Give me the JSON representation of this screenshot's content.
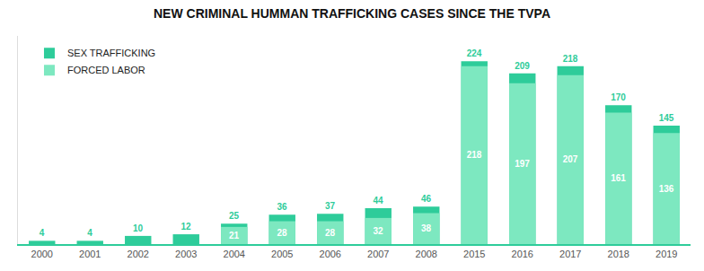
{
  "chart_data": {
    "type": "bar",
    "title": "NEW CRIMINAL HUMMAN TRAFFICKING CASES SINCE THE TVPA",
    "categories": [
      "2000",
      "2001",
      "2002",
      "2003",
      "2004",
      "2005",
      "2006",
      "2007",
      "2008",
      "2015",
      "2016",
      "2017",
      "2018",
      "2019"
    ],
    "series": [
      {
        "name": "SEX TRAFFICKING",
        "color": "#2ecc9a",
        "values": [
          4,
          4,
          10,
          12,
          25,
          36,
          37,
          44,
          46,
          224,
          209,
          218,
          170,
          145
        ]
      },
      {
        "name": "FORCED LABOR",
        "color": "#7de8c0",
        "values": [
          0,
          0,
          0,
          0,
          21,
          28,
          28,
          32,
          38,
          218,
          197,
          207,
          161,
          136
        ],
        "value_labels": [
          null,
          null,
          null,
          null,
          "21",
          "28",
          "28",
          "32",
          "38",
          "218",
          "197",
          "207",
          "161",
          "136"
        ]
      }
    ],
    "ylim": [
      0,
      255
    ],
    "stacked": false,
    "grid": false,
    "legend": "upper left",
    "data_labels": true,
    "tick_labels": "x"
  }
}
